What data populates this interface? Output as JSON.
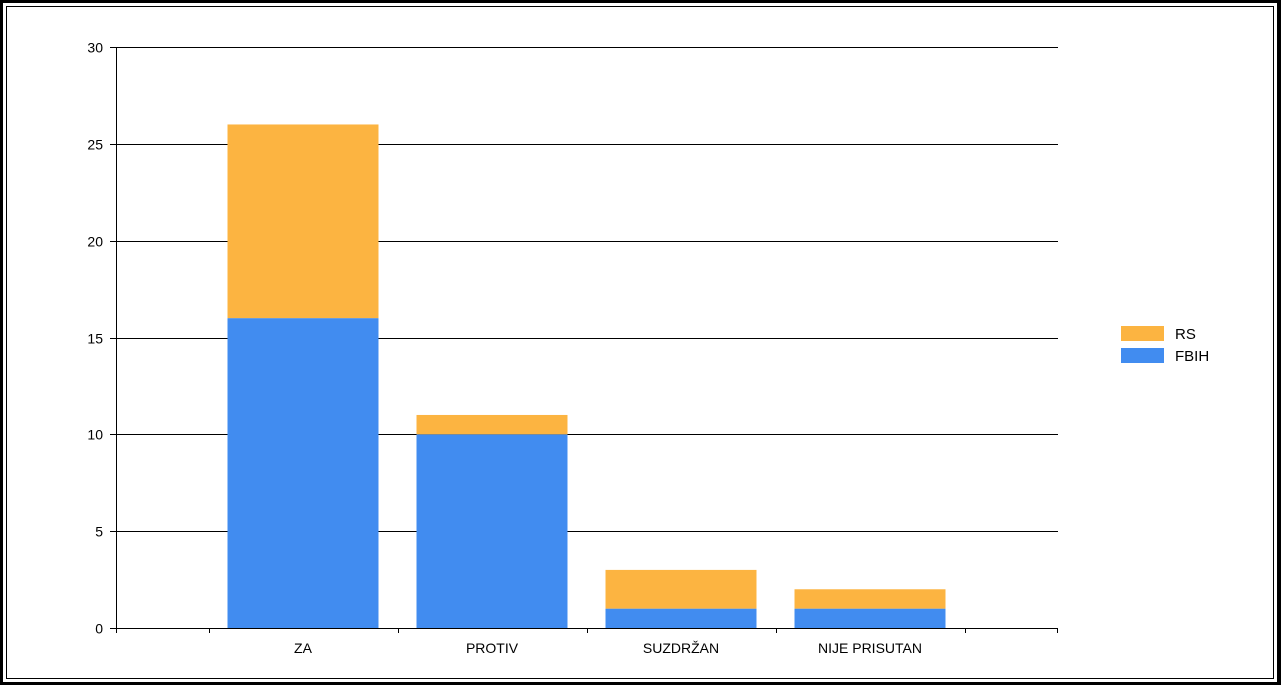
{
  "chart_data": {
    "type": "bar",
    "stacked": true,
    "categories": [
      "ZA",
      "PROTIV",
      "SUZDRŽAN",
      "NIJE PRISUTAN"
    ],
    "series": [
      {
        "name": "FBIH",
        "values": [
          16,
          10,
          1,
          1
        ],
        "color": "#418cf0"
      },
      {
        "name": "RS",
        "values": [
          10,
          1,
          2,
          1
        ],
        "color": "#fcb441"
      }
    ],
    "ylim": [
      0,
      30
    ],
    "yticks": [
      0,
      5,
      10,
      15,
      20,
      25,
      30
    ],
    "grid": true,
    "legend_position": "right",
    "legend_order": [
      "RS",
      "FBIH"
    ],
    "title": "",
    "xlabel": "",
    "ylabel": ""
  }
}
